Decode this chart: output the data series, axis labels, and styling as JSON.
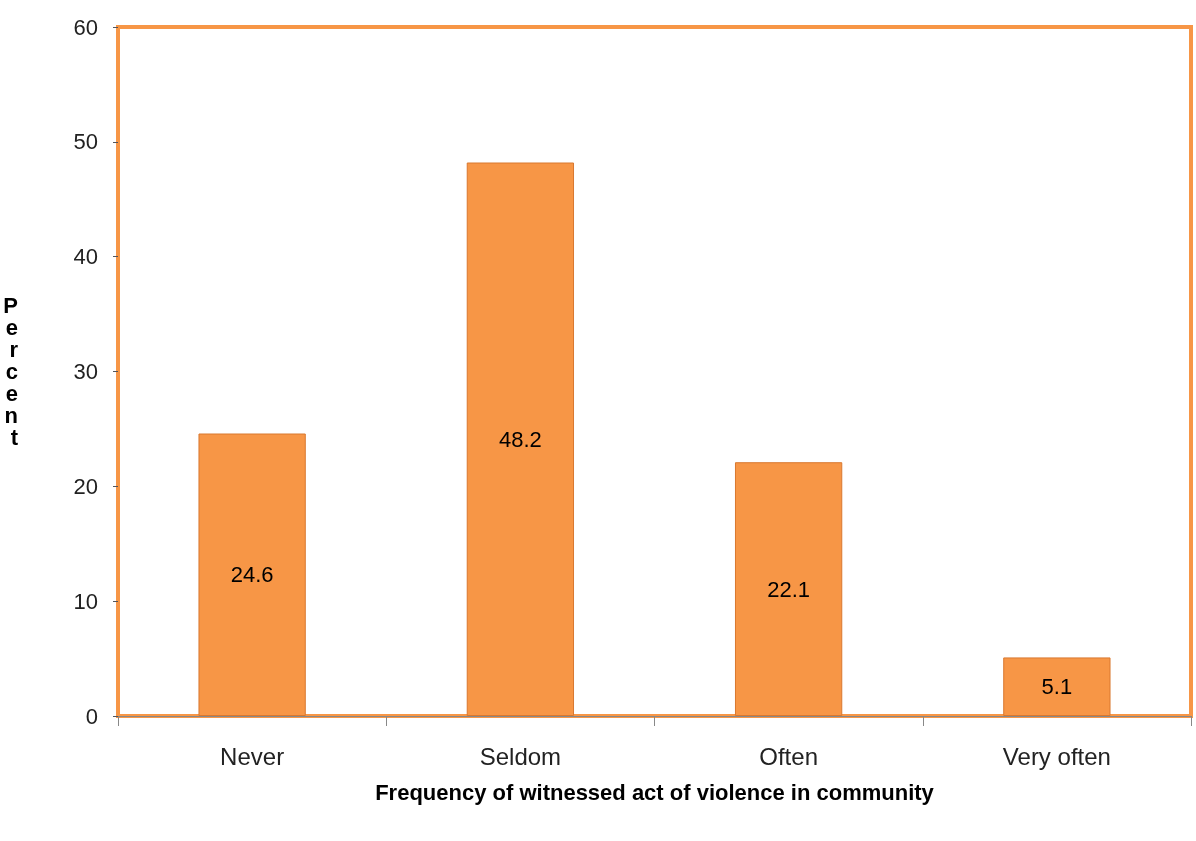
{
  "chart_data": {
    "type": "bar",
    "xlabel": "Frequency of witnessed act of violence in community",
    "ylabel": "Percent",
    "categories": [
      "Never",
      "Seldom",
      "Often",
      "Very often"
    ],
    "values": [
      24.6,
      48.2,
      22.1,
      5.1
    ],
    "color": "#f79646",
    "ylim": [
      0,
      60
    ],
    "yticks": [
      0,
      10,
      20,
      30,
      40,
      50,
      60
    ],
    "grid": false,
    "data_labels": true
  }
}
